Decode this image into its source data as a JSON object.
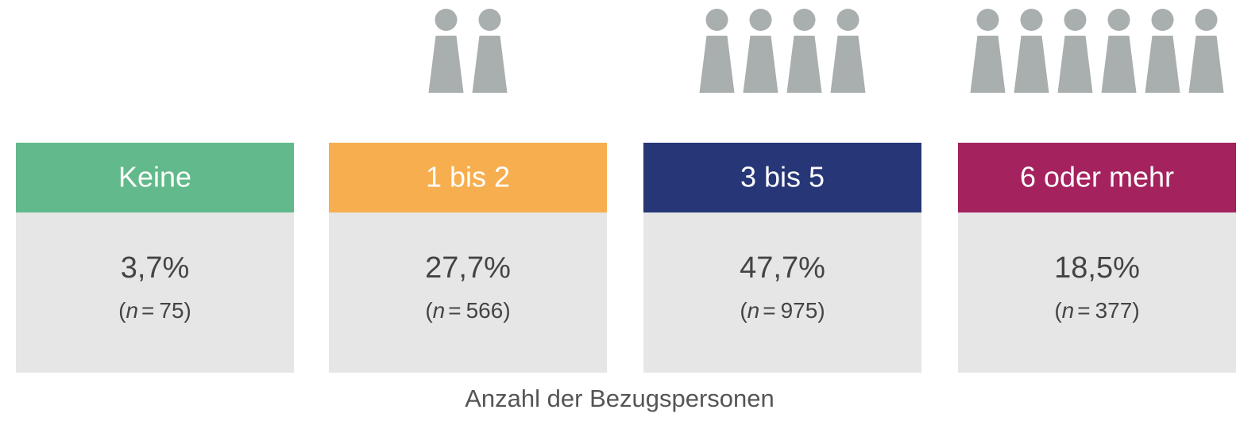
{
  "footer": "Anzahl der Bezugspersonen",
  "sample_open": "(",
  "sample_symbol": "n",
  "sample_equals": "=",
  "sample_close": ")",
  "items": [
    {
      "label": "Keine",
      "percent": "3,7%",
      "n": 75,
      "color": "#62b98b"
    },
    {
      "label": "1 bis 2",
      "percent": "27,7%",
      "n": 566,
      "color": "#f7ae4f"
    },
    {
      "label": "3 bis 5",
      "percent": "47,7%",
      "n": 975,
      "color": "#263677"
    },
    {
      "label": "6 oder mehr",
      "percent": "18,5%",
      "n": 377,
      "color": "#a4225e"
    }
  ]
}
